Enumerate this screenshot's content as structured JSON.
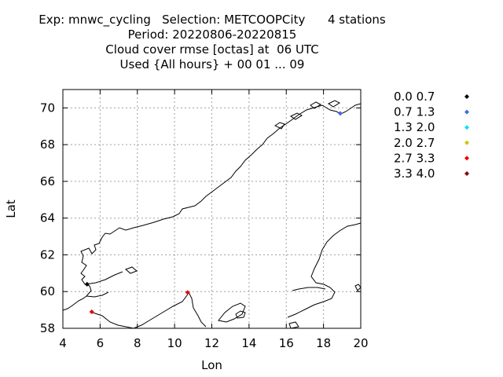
{
  "title_lines": [
    "Exp: mnwc_cycling   Selection: METCOOPCity      4 stations",
    "Period: 20220806-20220815",
    "Cloud cover rmse [octas] at  06 UTC",
    "Used {All hours} + 00 01 ... 09"
  ],
  "chart_data": {
    "type": "scatter",
    "xlabel": "Lon",
    "ylabel": "Lat",
    "xlim": [
      4,
      20
    ],
    "ylim": [
      58,
      71
    ],
    "xticks": [
      "4",
      "6",
      "8",
      "10",
      "12",
      "14",
      "16",
      "18",
      "20"
    ],
    "yticks": [
      "58",
      "60",
      "62",
      "64",
      "66",
      "68",
      "70"
    ],
    "grid": true,
    "legend_position": "right",
    "legend": [
      {
        "label": "0.0 0.7",
        "color": "#000000"
      },
      {
        "label": "0.7 1.3",
        "color": "#4169e1"
      },
      {
        "label": "1.3 2.0",
        "color": "#00e5ee"
      },
      {
        "label": "2.0 2.7",
        "color": "#c8c800"
      },
      {
        "label": "2.7 3.3",
        "color": "#ee0000"
      },
      {
        "label": "3.3 4.0",
        "color": "#8b0000"
      }
    ],
    "points": [
      {
        "lon": 18.9,
        "lat": 69.7,
        "color": "#4169e1"
      },
      {
        "lon": 10.7,
        "lat": 59.95,
        "color": "#ee0000"
      },
      {
        "lon": 5.55,
        "lat": 58.9,
        "color": "#ee0000"
      },
      {
        "lon": 5.3,
        "lat": 60.4,
        "color": "#000000"
      }
    ]
  }
}
